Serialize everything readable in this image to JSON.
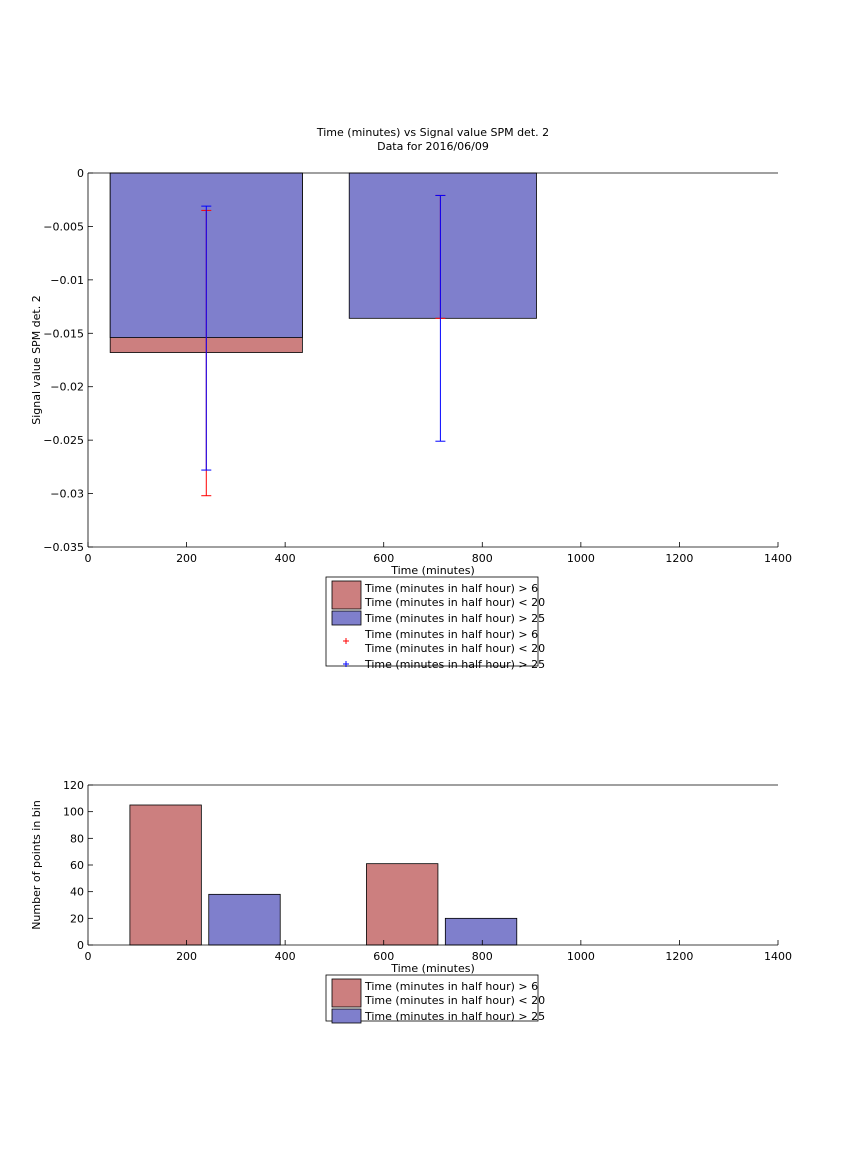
{
  "chart_data": [
    {
      "type": "bar",
      "title": "Time (minutes) vs Signal value SPM det. 2",
      "subtitle": "Data for 2016/06/09",
      "xlabel": "Time (minutes)",
      "ylabel": "Signal value SPM det. 2",
      "xlim": [
        0,
        1400
      ],
      "ylim": [
        -0.035,
        0
      ],
      "xticks": [
        0,
        200,
        400,
        600,
        800,
        1000,
        1200,
        1400
      ],
      "yticks": [
        0,
        -0.005,
        -0.01,
        -0.015,
        -0.02,
        -0.025,
        -0.03,
        -0.035
      ],
      "xtick_labels": [
        "0",
        "200",
        "400",
        "600",
        "800",
        "1000",
        "1200",
        "1400"
      ],
      "ytick_labels": [
        "0",
        "−0.005",
        "−0.01",
        "−0.015",
        "−0.02",
        "−0.025",
        "−0.03",
        "−0.035"
      ],
      "grid": false,
      "legend_position": "below",
      "bars": [
        {
          "series": 0,
          "x0": 45,
          "x1": 435,
          "value": -0.0168
        },
        {
          "series": 1,
          "x0": 45,
          "x1": 435,
          "value": -0.0154
        },
        {
          "series": 1,
          "x0": 530,
          "x1": 910,
          "value": -0.0136
        }
      ],
      "errorbars": [
        {
          "series": 0,
          "x": 240,
          "low": -0.0302,
          "high": -0.0035
        },
        {
          "series": 1,
          "x": 240,
          "low": -0.0278,
          "high": -0.0031
        },
        {
          "series": 0,
          "x": 715,
          "low": -0.0136,
          "high": -0.0021
        },
        {
          "series": 1,
          "x": 715,
          "low": -0.0251,
          "high": -0.0021
        }
      ],
      "series": [
        {
          "name_lines": [
            "Time (minutes in half hour) > 6",
            "Time (minutes in half hour) < 20"
          ],
          "color": "#cc7f7f"
        },
        {
          "name_lines": [
            "Time (minutes in half hour) > 25"
          ],
          "color": "#7f7fcc"
        }
      ],
      "errorbar_colors": [
        "#ff0000",
        "#0000ff"
      ],
      "legend_entries": [
        {
          "kind": "patch",
          "series": 0,
          "lines": [
            "Time (minutes in half hour) > 6",
            "Time (minutes in half hour) < 20"
          ]
        },
        {
          "kind": "patch",
          "series": 1,
          "lines": [
            "Time (minutes in half hour) > 25"
          ]
        },
        {
          "kind": "marker",
          "series": 0,
          "lines": [
            "Time (minutes in half hour) > 6",
            "Time (minutes in half hour) < 20"
          ]
        },
        {
          "kind": "marker",
          "series": 1,
          "lines": [
            "Time (minutes in half hour) > 25"
          ]
        }
      ]
    },
    {
      "type": "bar",
      "title": "",
      "xlabel": "Time (minutes)",
      "ylabel": "Number of points in bin",
      "xlim": [
        0,
        1400
      ],
      "ylim": [
        0,
        120
      ],
      "xticks": [
        0,
        200,
        400,
        600,
        800,
        1000,
        1200,
        1400
      ],
      "yticks": [
        0,
        20,
        40,
        60,
        80,
        100,
        120
      ],
      "xtick_labels": [
        "0",
        "200",
        "400",
        "600",
        "800",
        "1000",
        "1200",
        "1400"
      ],
      "ytick_labels": [
        "0",
        "20",
        "40",
        "60",
        "80",
        "100",
        "120"
      ],
      "grid": false,
      "legend_position": "below",
      "bars": [
        {
          "series": 0,
          "x0": 85,
          "x1": 230,
          "value": 105
        },
        {
          "series": 1,
          "x0": 245,
          "x1": 390,
          "value": 38
        },
        {
          "series": 0,
          "x0": 565,
          "x1": 710,
          "value": 61
        },
        {
          "series": 1,
          "x0": 725,
          "x1": 870,
          "value": 20
        }
      ],
      "series": [
        {
          "name_lines": [
            "Time (minutes in half hour) > 6",
            "Time (minutes in half hour) < 20"
          ],
          "color": "#cc7f7f"
        },
        {
          "name_lines": [
            "Time (minutes in half hour) > 25"
          ],
          "color": "#7f7fcc"
        }
      ],
      "legend_entries": [
        {
          "kind": "patch",
          "series": 0,
          "lines": [
            "Time (minutes in half hour) > 6",
            "Time (minutes in half hour) < 20"
          ]
        },
        {
          "kind": "patch",
          "series": 1,
          "lines": [
            "Time (minutes in half hour) > 25"
          ]
        }
      ]
    }
  ]
}
